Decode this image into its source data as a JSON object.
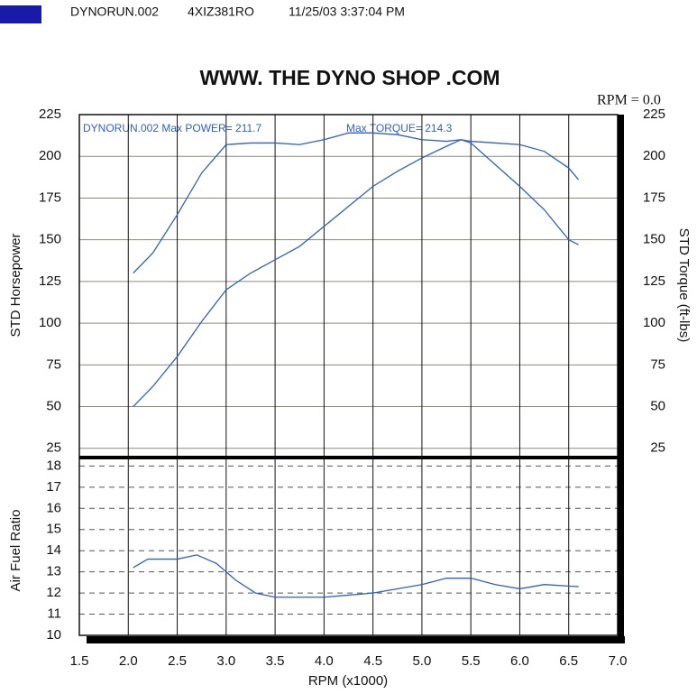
{
  "header": [
    "DYNORUN.002",
    "4XIZ381RO",
    "11/25/03 3:37:04 PM"
  ],
  "chart_data": [
    {
      "type": "line",
      "title": "WWW. THE DYNO SHOP .COM",
      "ylabel": "STD Horsepower",
      "y2label": "STD Torque (ft-lbs)",
      "annotations": [
        "DYNORUN.002  Max POWER= 211.7",
        "Max TORQUE= 214.3",
        "RPM = 0.0"
      ],
      "x": [
        2.05,
        2.25,
        2.5,
        2.75,
        3.0,
        3.25,
        3.5,
        3.75,
        4.0,
        4.25,
        4.5,
        4.75,
        5.0,
        5.25,
        5.4,
        5.5,
        5.75,
        6.0,
        6.25,
        6.5,
        6.6
      ],
      "series": [
        {
          "color": "#2f5fc4",
          "values": [
            50,
            62,
            80,
            101,
            120,
            130,
            138,
            146,
            158,
            170,
            182,
            191,
            199,
            206,
            210,
            208,
            195,
            182,
            168,
            150,
            147
          ]
        },
        {
          "color": "#2f5fc4",
          "axis": "y2",
          "values": [
            130,
            142,
            165,
            190,
            207,
            208,
            208,
            207,
            210,
            214,
            214,
            213,
            210,
            209,
            210,
            209,
            208,
            207,
            203,
            193,
            186
          ]
        }
      ],
      "xlim": [
        1.5,
        7.0
      ],
      "ylim": [
        20,
        225
      ],
      "yticks": [
        25,
        50,
        75,
        100,
        125,
        150,
        175,
        200,
        225
      ],
      "y2lim": [
        20,
        225
      ],
      "y2ticks": [
        25,
        50,
        75,
        100,
        125,
        150,
        175,
        200,
        225
      ],
      "grid": true
    },
    {
      "type": "line",
      "ylabel": "Air Fuel Ratio",
      "xlabel": "RPM (x1000)",
      "x": [
        2.05,
        2.2,
        2.5,
        2.7,
        2.9,
        3.1,
        3.3,
        3.5,
        4.0,
        4.5,
        5.0,
        5.25,
        5.5,
        5.75,
        6.0,
        6.25,
        6.6
      ],
      "series": [
        {
          "color": "#2f5fc4",
          "values": [
            13.2,
            13.6,
            13.6,
            13.8,
            13.4,
            12.6,
            12.0,
            11.8,
            11.8,
            12.0,
            12.4,
            12.7,
            12.7,
            12.4,
            12.2,
            12.4,
            12.3
          ]
        }
      ],
      "xlim": [
        1.5,
        7.0
      ],
      "xticks": [
        1.5,
        {
          "value": 2,
          "label": "2.0"
        },
        2.5,
        {
          "value": 3,
          "label": "3.0"
        },
        3.5,
        {
          "value": 4,
          "label": "4.0"
        },
        4.5,
        {
          "value": 5,
          "label": "5.0"
        },
        5.5,
        {
          "value": 6,
          "label": "6.0"
        },
        6.5,
        {
          "value": 7,
          "label": "7.0"
        }
      ],
      "ylim": [
        10,
        18.4
      ],
      "yticks": [
        10,
        11,
        12,
        13,
        14,
        15,
        16,
        17,
        18
      ],
      "grid": true
    }
  ]
}
